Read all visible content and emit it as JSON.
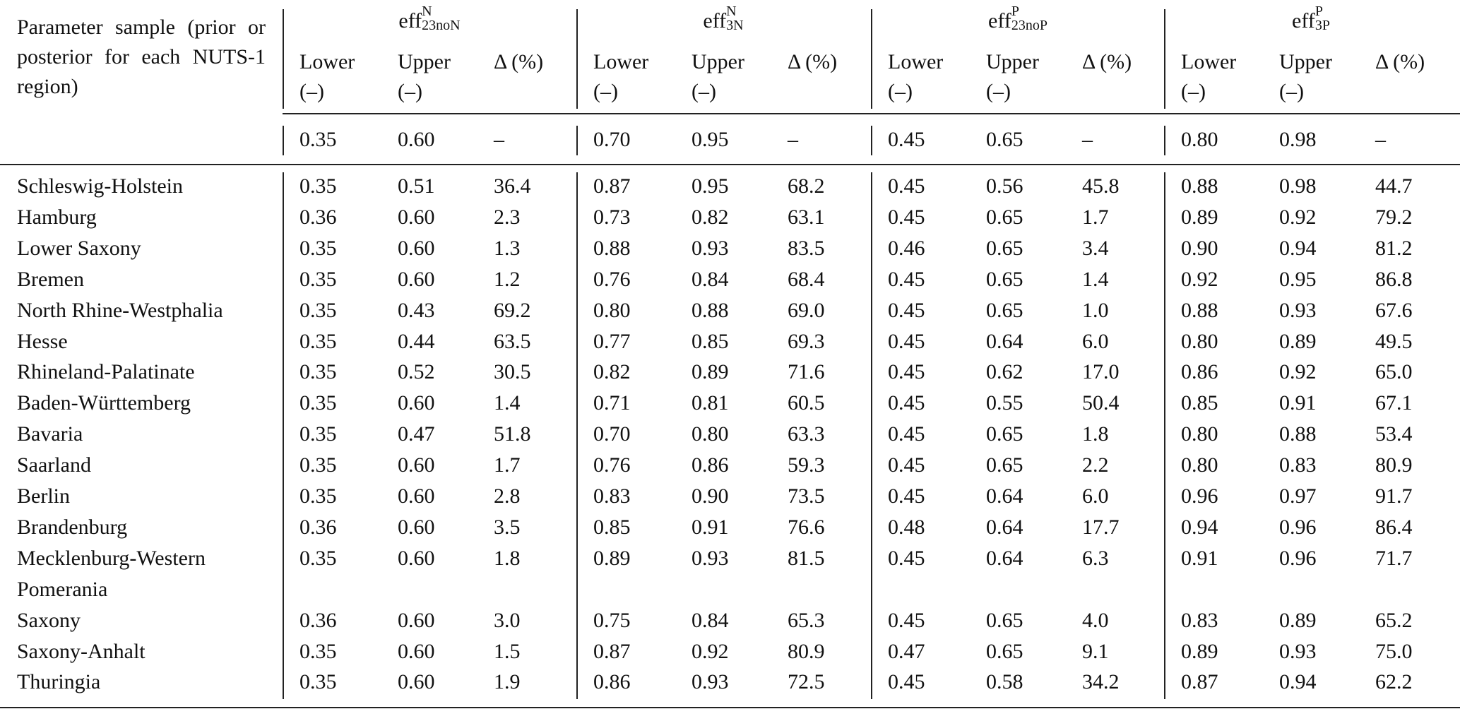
{
  "table": {
    "stub_header": "Parameter sample (prior or posterior for each NUTS-1 region)",
    "groups": [
      {
        "symbol": "eff",
        "sup": "N",
        "sub": "23noN",
        "columns": [
          {
            "name": "Lower",
            "unit": "(–)"
          },
          {
            "name": "Upper",
            "unit": "(–)"
          },
          {
            "name": "Δ (%)"
          }
        ]
      },
      {
        "symbol": "eff",
        "sup": "N",
        "sub": "3N",
        "columns": [
          {
            "name": "Lower",
            "unit": "(–)"
          },
          {
            "name": "Upper",
            "unit": "(–)"
          },
          {
            "name": "Δ (%)"
          }
        ]
      },
      {
        "symbol": "eff",
        "sup": "P",
        "sub": "23noP",
        "columns": [
          {
            "name": "Lower",
            "unit": "(–)"
          },
          {
            "name": "Upper",
            "unit": "(–)"
          },
          {
            "name": "Δ (%)"
          }
        ]
      },
      {
        "symbol": "eff",
        "sup": "P",
        "sub": "3P",
        "columns": [
          {
            "name": "Lower",
            "unit": "(–)"
          },
          {
            "name": "Upper",
            "unit": "(–)"
          },
          {
            "name": "Δ (%)"
          }
        ]
      }
    ],
    "prior": [
      "0.35",
      "0.60",
      "–",
      "0.70",
      "0.95",
      "–",
      "0.45",
      "0.65",
      "–",
      "0.80",
      "0.98",
      "–"
    ],
    "rows": [
      {
        "region": "Schleswig-Holstein",
        "values": [
          "0.35",
          "0.51",
          "36.4",
          "0.87",
          "0.95",
          "68.2",
          "0.45",
          "0.56",
          "45.8",
          "0.88",
          "0.98",
          "44.7"
        ]
      },
      {
        "region": "Hamburg",
        "values": [
          "0.36",
          "0.60",
          "2.3",
          "0.73",
          "0.82",
          "63.1",
          "0.45",
          "0.65",
          "1.7",
          "0.89",
          "0.92",
          "79.2"
        ]
      },
      {
        "region": "Lower Saxony",
        "values": [
          "0.35",
          "0.60",
          "1.3",
          "0.88",
          "0.93",
          "83.5",
          "0.46",
          "0.65",
          "3.4",
          "0.90",
          "0.94",
          "81.2"
        ]
      },
      {
        "region": "Bremen",
        "values": [
          "0.35",
          "0.60",
          "1.2",
          "0.76",
          "0.84",
          "68.4",
          "0.45",
          "0.65",
          "1.4",
          "0.92",
          "0.95",
          "86.8"
        ]
      },
      {
        "region": "North Rhine-Westphalia",
        "values": [
          "0.35",
          "0.43",
          "69.2",
          "0.80",
          "0.88",
          "69.0",
          "0.45",
          "0.65",
          "1.0",
          "0.88",
          "0.93",
          "67.6"
        ]
      },
      {
        "region": "Hesse",
        "values": [
          "0.35",
          "0.44",
          "63.5",
          "0.77",
          "0.85",
          "69.3",
          "0.45",
          "0.64",
          "6.0",
          "0.80",
          "0.89",
          "49.5"
        ]
      },
      {
        "region": "Rhineland-Palatinate",
        "values": [
          "0.35",
          "0.52",
          "30.5",
          "0.82",
          "0.89",
          "71.6",
          "0.45",
          "0.62",
          "17.0",
          "0.86",
          "0.92",
          "65.0"
        ]
      },
      {
        "region": "Baden-Württemberg",
        "values": [
          "0.35",
          "0.60",
          "1.4",
          "0.71",
          "0.81",
          "60.5",
          "0.45",
          "0.55",
          "50.4",
          "0.85",
          "0.91",
          "67.1"
        ]
      },
      {
        "region": "Bavaria",
        "values": [
          "0.35",
          "0.47",
          "51.8",
          "0.70",
          "0.80",
          "63.3",
          "0.45",
          "0.65",
          "1.8",
          "0.80",
          "0.88",
          "53.4"
        ]
      },
      {
        "region": "Saarland",
        "values": [
          "0.35",
          "0.60",
          "1.7",
          "0.76",
          "0.86",
          "59.3",
          "0.45",
          "0.65",
          "2.2",
          "0.80",
          "0.83",
          "80.9"
        ]
      },
      {
        "region": "Berlin",
        "values": [
          "0.35",
          "0.60",
          "2.8",
          "0.83",
          "0.90",
          "73.5",
          "0.45",
          "0.64",
          "6.0",
          "0.96",
          "0.97",
          "91.7"
        ]
      },
      {
        "region": "Brandenburg",
        "values": [
          "0.36",
          "0.60",
          "3.5",
          "0.85",
          "0.91",
          "76.6",
          "0.48",
          "0.64",
          "17.7",
          "0.94",
          "0.96",
          "86.4"
        ]
      },
      {
        "region": "Mecklenburg-Western Pomerania",
        "values": [
          "0.35",
          "0.60",
          "1.8",
          "0.89",
          "0.93",
          "81.5",
          "0.45",
          "0.64",
          "6.3",
          "0.91",
          "0.96",
          "71.7"
        ]
      },
      {
        "region": "Saxony",
        "values": [
          "0.36",
          "0.60",
          "3.0",
          "0.75",
          "0.84",
          "65.3",
          "0.45",
          "0.65",
          "4.0",
          "0.83",
          "0.89",
          "65.2"
        ]
      },
      {
        "region": "Saxony-Anhalt",
        "values": [
          "0.35",
          "0.60",
          "1.5",
          "0.87",
          "0.92",
          "80.9",
          "0.47",
          "0.65",
          "9.1",
          "0.89",
          "0.93",
          "75.0"
        ]
      },
      {
        "region": "Thuringia",
        "values": [
          "0.35",
          "0.60",
          "1.9",
          "0.86",
          "0.93",
          "72.5",
          "0.45",
          "0.58",
          "34.2",
          "0.87",
          "0.94",
          "62.2"
        ]
      }
    ]
  }
}
